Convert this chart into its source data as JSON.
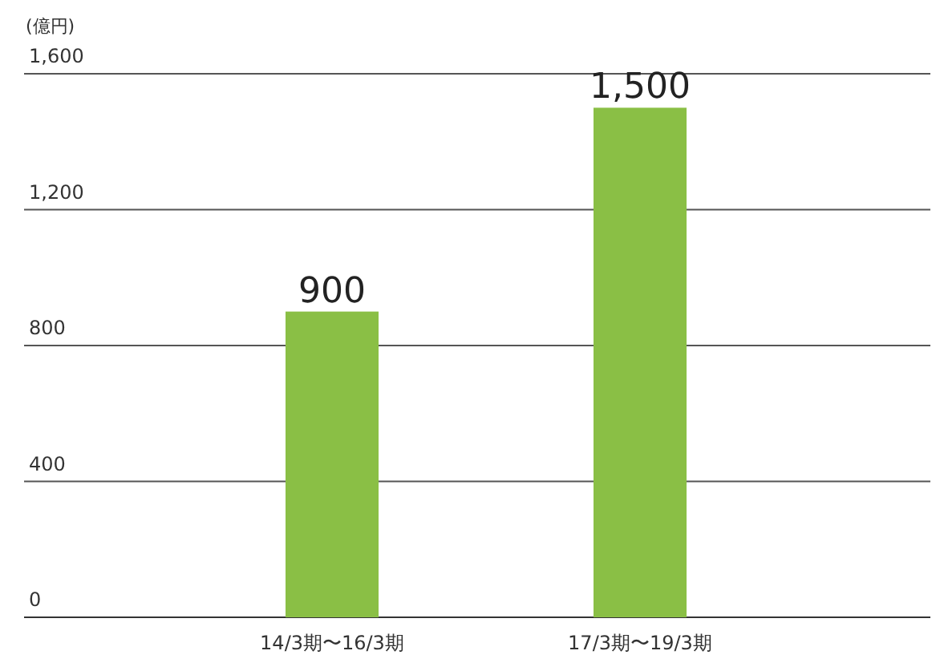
{
  "chart_data": {
    "type": "bar",
    "ylabel": "(億円)",
    "categories": [
      "14/3期〜16/3期",
      "17/3期〜19/3期"
    ],
    "values": [
      900,
      1500
    ],
    "color": "#8abf45",
    "ylim": [
      0,
      1600
    ],
    "yticks": [
      0,
      {
        "value": 400,
        "label": "400"
      },
      {
        "value": 800,
        "label": "800"
      },
      {
        "value": 1200,
        "label": "1,200"
      },
      {
        "value": 1600,
        "label": "1,600"
      }
    ],
    "grid": "y",
    "value_labels": [
      "900",
      "1,500"
    ]
  }
}
